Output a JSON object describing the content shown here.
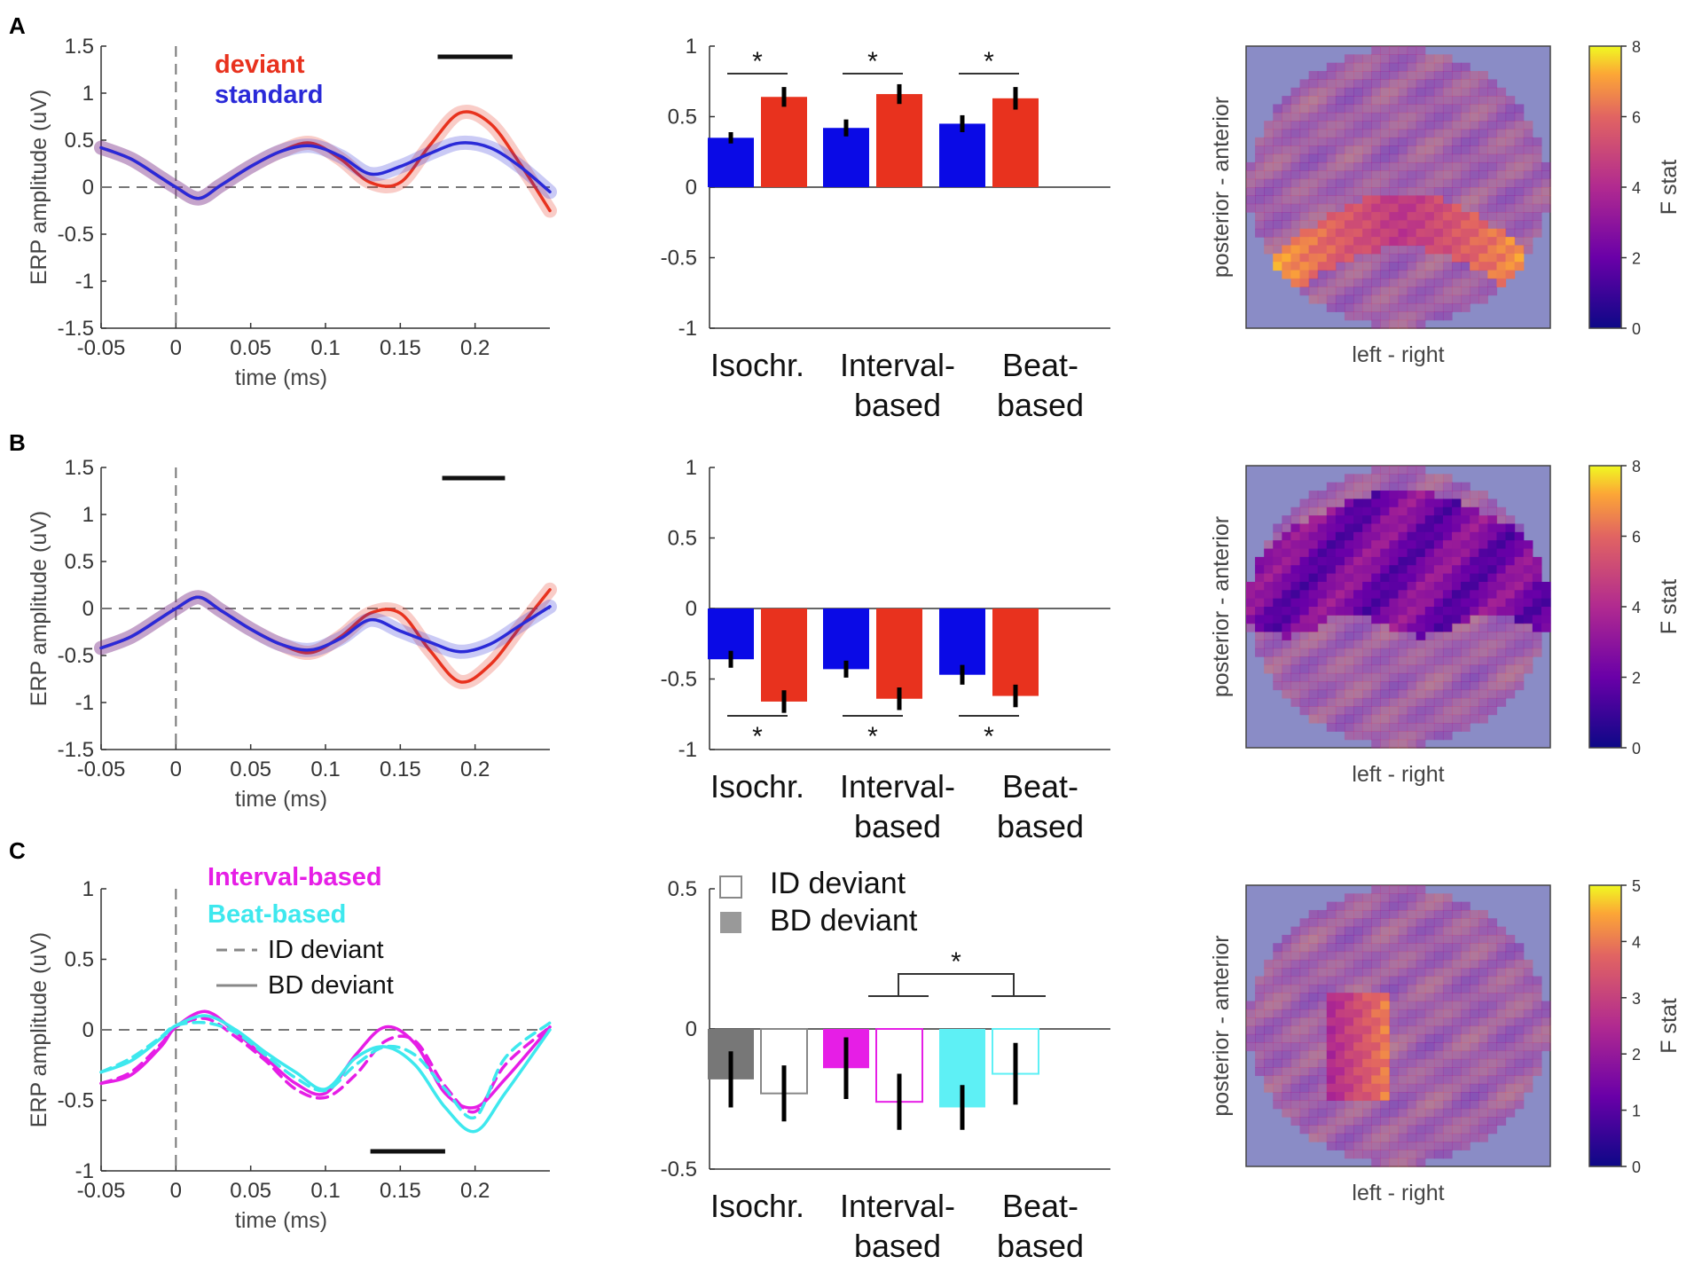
{
  "figure": {
    "panel_labels": [
      "A",
      "B",
      "C"
    ]
  },
  "chart_data": [
    {
      "id": "A-erp",
      "type": "line",
      "xlabel": "time (ms)",
      "ylabel": "ERP amplitude (uV)",
      "xlim": [
        -0.05,
        0.25
      ],
      "ylim": [
        -1.5,
        1.5
      ],
      "xticks": [
        "-0.05",
        "0",
        "0.05",
        "0.1",
        "0.15",
        "0.2"
      ],
      "yticks": [
        "-1.5",
        "-1",
        "-0.5",
        "0",
        "0.5",
        "1",
        "1.5"
      ],
      "x": [
        -0.05,
        -0.03,
        -0.01,
        0,
        0.015,
        0.03,
        0.05,
        0.07,
        0.09,
        0.11,
        0.13,
        0.15,
        0.17,
        0.19,
        0.21,
        0.23,
        0.25
      ],
      "series": [
        {
          "name": "deviant",
          "color": "#e8321e",
          "values": [
            0.42,
            0.3,
            0.1,
            0.0,
            -0.12,
            0.02,
            0.22,
            0.38,
            0.47,
            0.3,
            0.05,
            0.05,
            0.45,
            0.79,
            0.68,
            0.25,
            -0.25
          ]
        },
        {
          "name": "standard",
          "color": "#2a2ad8",
          "values": [
            0.42,
            0.3,
            0.1,
            0.0,
            -0.12,
            0.02,
            0.22,
            0.38,
            0.44,
            0.33,
            0.14,
            0.22,
            0.36,
            0.47,
            0.42,
            0.22,
            -0.05
          ]
        }
      ],
      "sig_bar": [
        0.175,
        0.225
      ],
      "legend": [
        "deviant",
        "standard"
      ]
    },
    {
      "id": "A-bar",
      "type": "bar",
      "categories": [
        "Isochr.",
        "Interval-\nbased",
        "Beat-\nbased"
      ],
      "ylim": [
        -1,
        1
      ],
      "yticks": [
        "-1",
        "-0.5",
        "0",
        "0.5",
        "1"
      ],
      "series": [
        {
          "name": "standard",
          "color": "#0a0ae6",
          "values": [
            0.35,
            0.42,
            0.45
          ],
          "err": [
            0.04,
            0.06,
            0.06
          ]
        },
        {
          "name": "deviant",
          "color": "#e8321e",
          "values": [
            0.64,
            0.66,
            0.63
          ],
          "err": [
            0.07,
            0.07,
            0.08
          ]
        }
      ],
      "significance": [
        "*",
        "*",
        "*"
      ]
    },
    {
      "id": "A-topo",
      "type": "heatmap",
      "xlabel": "left - right",
      "ylabel": "posterior - anterior",
      "colorbar_label": "F stat",
      "colorbar_range": [
        0,
        8
      ],
      "colorbar_ticks": [
        "0",
        "2",
        "4",
        "6",
        "8"
      ]
    },
    {
      "id": "B-erp",
      "type": "line",
      "xlabel": "time (ms)",
      "ylabel": "ERP amplitude (uV)",
      "xlim": [
        -0.05,
        0.25
      ],
      "ylim": [
        -1.5,
        1.5
      ],
      "xticks": [
        "-0.05",
        "0",
        "0.05",
        "0.1",
        "0.15",
        "0.2"
      ],
      "yticks": [
        "-1.5",
        "-1",
        "-0.5",
        "0",
        "0.5",
        "1",
        "1.5"
      ],
      "x": [
        -0.05,
        -0.03,
        -0.01,
        0,
        0.015,
        0.03,
        0.05,
        0.07,
        0.09,
        0.11,
        0.13,
        0.15,
        0.17,
        0.19,
        0.21,
        0.23,
        0.25
      ],
      "series": [
        {
          "name": "deviant",
          "color": "#e8321e",
          "values": [
            -0.42,
            -0.3,
            -0.1,
            0.0,
            0.12,
            -0.02,
            -0.22,
            -0.38,
            -0.47,
            -0.3,
            -0.05,
            -0.05,
            -0.45,
            -0.78,
            -0.6,
            -0.2,
            0.2
          ]
        },
        {
          "name": "standard",
          "color": "#2a2ad8",
          "values": [
            -0.42,
            -0.3,
            -0.1,
            0.0,
            0.12,
            -0.02,
            -0.22,
            -0.38,
            -0.44,
            -0.32,
            -0.12,
            -0.24,
            -0.36,
            -0.46,
            -0.38,
            -0.18,
            0.02
          ]
        }
      ],
      "sig_bar": [
        0.178,
        0.22
      ]
    },
    {
      "id": "B-bar",
      "type": "bar",
      "categories": [
        "Isochr.",
        "Interval-\nbased",
        "Beat-\nbased"
      ],
      "ylim": [
        -1,
        1
      ],
      "yticks": [
        "-1",
        "-0.5",
        "0",
        "0.5",
        "1"
      ],
      "series": [
        {
          "name": "standard",
          "color": "#0a0ae6",
          "values": [
            -0.36,
            -0.43,
            -0.47
          ],
          "err": [
            0.06,
            0.06,
            0.07
          ]
        },
        {
          "name": "deviant",
          "color": "#e8321e",
          "values": [
            -0.66,
            -0.64,
            -0.62
          ],
          "err": [
            0.08,
            0.08,
            0.08
          ]
        }
      ],
      "significance": [
        "*",
        "*",
        "*"
      ]
    },
    {
      "id": "B-topo",
      "type": "heatmap",
      "xlabel": "left - right",
      "ylabel": "posterior - anterior",
      "colorbar_label": "F stat",
      "colorbar_range": [
        0,
        8
      ],
      "colorbar_ticks": [
        "0",
        "2",
        "4",
        "6",
        "8"
      ]
    },
    {
      "id": "C-erp",
      "type": "line",
      "xlabel": "time (ms)",
      "ylabel": "ERP amplitude (uV)",
      "xlim": [
        -0.05,
        0.25
      ],
      "ylim": [
        -1,
        1
      ],
      "xticks": [
        "-0.05",
        "0",
        "0.05",
        "0.1",
        "0.15",
        "0.2"
      ],
      "yticks": [
        "-1",
        "-0.5",
        "0",
        "0.5",
        "1"
      ],
      "x": [
        -0.05,
        -0.03,
        -0.01,
        0,
        0.02,
        0.04,
        0.06,
        0.08,
        0.1,
        0.12,
        0.14,
        0.16,
        0.18,
        0.2,
        0.22,
        0.25
      ],
      "series": [
        {
          "name": "Interval-based, ID deviant",
          "color": "#e61ee6",
          "dash": true,
          "values": [
            -0.38,
            -0.3,
            -0.1,
            0.02,
            0.08,
            -0.05,
            -0.22,
            -0.42,
            -0.48,
            -0.32,
            -0.08,
            -0.08,
            -0.4,
            -0.58,
            -0.25,
            0.02
          ]
        },
        {
          "name": "Interval-based, BD deviant",
          "color": "#e61ee6",
          "dash": false,
          "values": [
            -0.38,
            -0.32,
            -0.12,
            0.02,
            0.13,
            -0.02,
            -0.2,
            -0.38,
            -0.45,
            -0.18,
            0.02,
            -0.1,
            -0.45,
            -0.55,
            -0.35,
            0.02
          ]
        },
        {
          "name": "Beat-based, ID deviant",
          "color": "#3ee8ee",
          "dash": true,
          "values": [
            -0.3,
            -0.2,
            -0.05,
            0.03,
            0.05,
            -0.02,
            -0.18,
            -0.34,
            -0.43,
            -0.25,
            -0.12,
            -0.18,
            -0.42,
            -0.62,
            -0.2,
            0.05
          ]
        },
        {
          "name": "Beat-based, BD deviant",
          "color": "#3ee8ee",
          "dash": false,
          "values": [
            -0.3,
            -0.22,
            -0.06,
            0.03,
            0.1,
            0.0,
            -0.16,
            -0.3,
            -0.42,
            -0.2,
            -0.12,
            -0.25,
            -0.55,
            -0.72,
            -0.45,
            0.0
          ]
        }
      ],
      "sig_bar": [
        0.13,
        0.18
      ],
      "legend": [
        "Interval-based",
        "Beat-based",
        "ID deviant",
        "BD deviant"
      ]
    },
    {
      "id": "C-bar",
      "type": "bar",
      "categories": [
        "Isochr.",
        "Interval-\nbased",
        "Beat-\nbased"
      ],
      "ylim": [
        -0.5,
        0.5
      ],
      "yticks": [
        "-0.5",
        "0",
        "0.5"
      ],
      "series": [
        {
          "name": "BD deviant",
          "fill": true,
          "colors": [
            "#777777",
            "#e61ee6",
            "#5ef0f5"
          ],
          "values": [
            -0.18,
            -0.14,
            -0.28
          ],
          "err": [
            0.1,
            0.11,
            0.08
          ]
        },
        {
          "name": "ID deviant",
          "fill": false,
          "colors": [
            "#888888",
            "#e61ee6",
            "#5ef0f5"
          ],
          "values": [
            -0.23,
            -0.26,
            -0.16
          ],
          "err": [
            0.1,
            0.1,
            0.11
          ]
        }
      ],
      "legend": [
        "ID deviant",
        "BD deviant"
      ],
      "significance": [
        "*"
      ]
    },
    {
      "id": "C-topo",
      "type": "heatmap",
      "xlabel": "left - right",
      "ylabel": "posterior - anterior",
      "colorbar_label": "F stat",
      "colorbar_range": [
        0,
        5
      ],
      "colorbar_ticks": [
        "0",
        "1",
        "2",
        "3",
        "4",
        "5"
      ]
    }
  ],
  "colors": {
    "deviant": "#e8321e",
    "standard": "#2a2ad8",
    "interval": "#e61ee6",
    "beat": "#3ee8ee",
    "topo_bg": "#8a8cc6"
  }
}
